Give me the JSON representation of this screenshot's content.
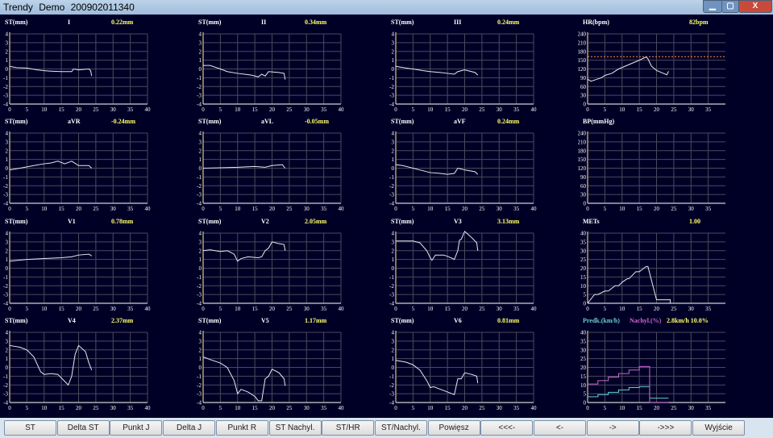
{
  "window": {
    "title": "Trendy  Demo  200902011340",
    "minimize": "▁",
    "maximize": "▢",
    "close": "X"
  },
  "colors": {
    "background": "#000027",
    "grid": "#4a4a5a",
    "trace": "#e8e8f0",
    "value": "#ffff66",
    "threshold": "#ff8c3a",
    "speed": "#66cccc",
    "incline": "#cc66cc"
  },
  "panels": [
    {
      "label": "ST(mm)",
      "lead": "I",
      "value": "0.22mm",
      "ylim": [
        -4,
        4
      ],
      "ystep": 1,
      "xticks": [
        0,
        5,
        10,
        15,
        20,
        25,
        30,
        35,
        40
      ],
      "series": [
        [
          [
            0,
            0.3
          ],
          [
            2,
            0.15
          ],
          [
            5,
            0.1
          ],
          [
            8,
            -0.1
          ],
          [
            10,
            -0.2
          ],
          [
            12,
            -0.25
          ],
          [
            15,
            -0.3
          ],
          [
            18,
            -0.3
          ],
          [
            18.5,
            0
          ],
          [
            20,
            -0.1
          ],
          [
            23,
            0
          ],
          [
            23.5,
            -0.2
          ],
          [
            23.8,
            -0.8
          ]
        ]
      ]
    },
    {
      "label": "ST(mm)",
      "lead": "II",
      "value": "0.34mm",
      "ylim": [
        -4,
        4
      ],
      "ystep": 1,
      "xticks": [
        0,
        5,
        10,
        15,
        20,
        25,
        30,
        35,
        40
      ],
      "series": [
        [
          [
            0,
            0.4
          ],
          [
            2,
            0.4
          ],
          [
            5,
            0
          ],
          [
            7,
            -0.3
          ],
          [
            10,
            -0.5
          ],
          [
            12,
            -0.6
          ],
          [
            14,
            -0.7
          ],
          [
            16,
            -0.9
          ],
          [
            17,
            -0.6
          ],
          [
            18,
            -0.8
          ],
          [
            19,
            -0.3
          ],
          [
            22,
            -0.4
          ],
          [
            23.5,
            -0.5
          ],
          [
            23.8,
            -1.2
          ]
        ]
      ]
    },
    {
      "label": "ST(mm)",
      "lead": "III",
      "value": "0.24mm",
      "ylim": [
        -4,
        4
      ],
      "ystep": 1,
      "xticks": [
        0,
        5,
        10,
        15,
        20,
        25,
        30,
        35,
        40
      ],
      "series": [
        [
          [
            0,
            0.3
          ],
          [
            3,
            0.1
          ],
          [
            5,
            0
          ],
          [
            8,
            -0.2
          ],
          [
            10,
            -0.3
          ],
          [
            13,
            -0.4
          ],
          [
            15,
            -0.5
          ],
          [
            17,
            -0.6
          ],
          [
            18,
            -0.3
          ],
          [
            20,
            -0.1
          ],
          [
            22,
            -0.3
          ],
          [
            23,
            -0.4
          ],
          [
            23.8,
            -0.7
          ]
        ]
      ]
    },
    {
      "label": "HR(bpm)",
      "lead": "",
      "value": "82bpm",
      "ylim": [
        0,
        240
      ],
      "ystep": 30,
      "xticks": [
        0,
        5,
        10,
        15,
        20,
        25,
        30,
        35
      ],
      "threshold": 162,
      "series": [
        [
          [
            0,
            85
          ],
          [
            1,
            78
          ],
          [
            3,
            86
          ],
          [
            4,
            90
          ],
          [
            5,
            98
          ],
          [
            7,
            105
          ],
          [
            9,
            120
          ],
          [
            11,
            130
          ],
          [
            13,
            140
          ],
          [
            15,
            150
          ],
          [
            17,
            161
          ],
          [
            17.5,
            155
          ],
          [
            18.5,
            130
          ],
          [
            20,
            115
          ],
          [
            22,
            105
          ],
          [
            23,
            100
          ],
          [
            23.5,
            112
          ]
        ]
      ]
    },
    {
      "label": "ST(mm)",
      "lead": "aVR",
      "value": "-0.24mm",
      "ylim": [
        -4,
        4
      ],
      "ystep": 1,
      "xticks": [
        0,
        5,
        10,
        15,
        20,
        25,
        30,
        35,
        40
      ],
      "series": [
        [
          [
            0,
            -0.2
          ],
          [
            3,
            0
          ],
          [
            7,
            0.3
          ],
          [
            10,
            0.5
          ],
          [
            12,
            0.6
          ],
          [
            14,
            0.8
          ],
          [
            16,
            0.5
          ],
          [
            18,
            0.8
          ],
          [
            20,
            0.3
          ],
          [
            23,
            0.3
          ],
          [
            23.8,
            0
          ]
        ]
      ]
    },
    {
      "label": "ST(mm)",
      "lead": "aVL",
      "value": "-0.05mm",
      "ylim": [
        -4,
        4
      ],
      "ystep": 1,
      "xticks": [
        0,
        5,
        10,
        15,
        20,
        25,
        30,
        35,
        40
      ],
      "series": [
        [
          [
            0,
            0
          ],
          [
            5,
            0.05
          ],
          [
            10,
            0.1
          ],
          [
            15,
            0.2
          ],
          [
            18,
            0.1
          ],
          [
            20,
            0.3
          ],
          [
            23,
            0.4
          ],
          [
            23.8,
            0
          ]
        ]
      ]
    },
    {
      "label": "ST(mm)",
      "lead": "aVF",
      "value": "0.24mm",
      "ylim": [
        -4,
        4
      ],
      "ystep": 1,
      "xticks": [
        0,
        5,
        10,
        15,
        20,
        25,
        30,
        35,
        40
      ],
      "series": [
        [
          [
            0,
            0.4
          ],
          [
            2,
            0.3
          ],
          [
            5,
            0
          ],
          [
            7,
            -0.2
          ],
          [
            10,
            -0.5
          ],
          [
            13,
            -0.6
          ],
          [
            15,
            -0.7
          ],
          [
            17,
            -0.6
          ],
          [
            18,
            0
          ],
          [
            20,
            -0.2
          ],
          [
            23,
            -0.4
          ],
          [
            23.8,
            -0.7
          ]
        ]
      ]
    },
    {
      "label": "BP(mmHg)",
      "lead": "",
      "value": "",
      "ylim": [
        0,
        240
      ],
      "ystep": 30,
      "xticks": [
        0,
        5,
        10,
        15,
        20,
        25,
        30,
        35
      ],
      "series": []
    },
    {
      "label": "ST(mm)",
      "lead": "V1",
      "value": "0.78mm",
      "ylim": [
        -4,
        4
      ],
      "ystep": 1,
      "xticks": [
        0,
        5,
        10,
        15,
        20,
        25,
        30,
        35,
        40
      ],
      "series": [
        [
          [
            0,
            0.8
          ],
          [
            5,
            1
          ],
          [
            10,
            1.1
          ],
          [
            15,
            1.2
          ],
          [
            18,
            1.3
          ],
          [
            20,
            1.5
          ],
          [
            23,
            1.6
          ],
          [
            23.8,
            1.4
          ]
        ]
      ]
    },
    {
      "label": "ST(mm)",
      "lead": "V2",
      "value": "2.05mm",
      "ylim": [
        -4,
        4
      ],
      "ystep": 1,
      "xticks": [
        0,
        5,
        10,
        15,
        20,
        25,
        30,
        35,
        40
      ],
      "series": [
        [
          [
            0,
            2
          ],
          [
            2,
            2.1
          ],
          [
            5,
            1.9
          ],
          [
            7,
            2
          ],
          [
            9,
            1.6
          ],
          [
            10,
            0.8
          ],
          [
            11,
            1.1
          ],
          [
            13,
            1.3
          ],
          [
            16,
            1.2
          ],
          [
            17,
            1.3
          ],
          [
            18,
            2
          ],
          [
            19,
            2.3
          ],
          [
            20,
            3
          ],
          [
            22,
            2.8
          ],
          [
            23.5,
            2.7
          ],
          [
            23.8,
            2
          ]
        ]
      ]
    },
    {
      "label": "ST(mm)",
      "lead": "V3",
      "value": "3.13mm",
      "ylim": [
        -4,
        4
      ],
      "ystep": 1,
      "xticks": [
        0,
        5,
        10,
        15,
        20,
        25,
        30,
        35,
        40
      ],
      "series": [
        [
          [
            0,
            3.1
          ],
          [
            3,
            3.1
          ],
          [
            5,
            3.1
          ],
          [
            7,
            2.9
          ],
          [
            9,
            2
          ],
          [
            10,
            1.2
          ],
          [
            10.5,
            0.9
          ],
          [
            11.5,
            1.5
          ],
          [
            14,
            1.5
          ],
          [
            16,
            1.2
          ],
          [
            17,
            1
          ],
          [
            18,
            2
          ],
          [
            18.5,
            3.2
          ],
          [
            19,
            3.3
          ],
          [
            20,
            4.2
          ],
          [
            22,
            3.5
          ],
          [
            23.5,
            2.9
          ],
          [
            23.8,
            2
          ]
        ]
      ]
    },
    {
      "label": "METs",
      "lead": "",
      "value": "1.00",
      "ylim": [
        0,
        40
      ],
      "ystep": 5,
      "xticks": [
        0,
        5,
        10,
        15,
        20,
        25,
        30,
        35
      ],
      "series": [
        [
          [
            0,
            0
          ],
          [
            2,
            5
          ],
          [
            3,
            5
          ],
          [
            5,
            7
          ],
          [
            6,
            7
          ],
          [
            8,
            10
          ],
          [
            9,
            10
          ],
          [
            10,
            12
          ],
          [
            11.5,
            14
          ],
          [
            12,
            14
          ],
          [
            14,
            18
          ],
          [
            15,
            18
          ],
          [
            17,
            21
          ],
          [
            17.5,
            21
          ],
          [
            20,
            2
          ],
          [
            24,
            2
          ],
          [
            24,
            0
          ]
        ]
      ]
    },
    {
      "label": "ST(mm)",
      "lead": "V4",
      "value": "2.37mm",
      "ylim": [
        -4,
        4
      ],
      "ystep": 1,
      "xticks": [
        0,
        5,
        10,
        15,
        20,
        25,
        30,
        35,
        40
      ],
      "series": [
        [
          [
            0,
            2.5
          ],
          [
            3,
            2.3
          ],
          [
            5,
            2
          ],
          [
            7,
            1.2
          ],
          [
            9,
            -0.5
          ],
          [
            10,
            -0.8
          ],
          [
            12,
            -0.7
          ],
          [
            14,
            -0.8
          ],
          [
            16,
            -1.6
          ],
          [
            17,
            -2
          ],
          [
            18,
            -1
          ],
          [
            19,
            1.5
          ],
          [
            20,
            2.5
          ],
          [
            22,
            1.8
          ],
          [
            23,
            0.5
          ],
          [
            23.8,
            -0.3
          ]
        ]
      ]
    },
    {
      "label": "ST(mm)",
      "lead": "V5",
      "value": "1.17mm",
      "ylim": [
        -4,
        4
      ],
      "ystep": 1,
      "xticks": [
        0,
        5,
        10,
        15,
        20,
        25,
        30,
        35,
        40
      ],
      "series": [
        [
          [
            0,
            1.2
          ],
          [
            2,
            0.9
          ],
          [
            5,
            0.5
          ],
          [
            7,
            0
          ],
          [
            9,
            -1.5
          ],
          [
            10,
            -3
          ],
          [
            11,
            -2.5
          ],
          [
            13,
            -2.8
          ],
          [
            15,
            -3.3
          ],
          [
            16,
            -3.8
          ],
          [
            17,
            -3.8
          ],
          [
            18,
            -1.3
          ],
          [
            19,
            -1
          ],
          [
            20,
            -0.2
          ],
          [
            22,
            -0.6
          ],
          [
            23.5,
            -1.3
          ],
          [
            23.8,
            -2.1
          ]
        ]
      ]
    },
    {
      "label": "ST(mm)",
      "lead": "V6",
      "value": "0.81mm",
      "ylim": [
        -4,
        4
      ],
      "ystep": 1,
      "xticks": [
        0,
        5,
        10,
        15,
        20,
        25,
        30,
        35,
        40
      ],
      "series": [
        [
          [
            0,
            0.8
          ],
          [
            3,
            0.6
          ],
          [
            5,
            0.3
          ],
          [
            7,
            -0.3
          ],
          [
            9,
            -1.5
          ],
          [
            10,
            -2.3
          ],
          [
            11,
            -2.2
          ],
          [
            13,
            -2.5
          ],
          [
            15,
            -2.8
          ],
          [
            17,
            -3.1
          ],
          [
            18,
            -1.3
          ],
          [
            19,
            -1.3
          ],
          [
            20,
            -0.6
          ],
          [
            22,
            -0.8
          ],
          [
            23.5,
            -1
          ],
          [
            23.8,
            -1.8
          ]
        ]
      ]
    },
    {
      "label": "Predk.(km/h)",
      "label2": "Nachyl.(%)",
      "lead": "",
      "value": "2.8km/h 10.0%",
      "ylim": [
        0,
        40
      ],
      "ystep": 5,
      "xticks": [
        0,
        5,
        10,
        15,
        20,
        25,
        30,
        35
      ],
      "series": [
        [
          [
            0,
            3.3
          ],
          [
            3,
            3.3
          ],
          [
            3,
            4.5
          ],
          [
            6,
            4.5
          ],
          [
            6,
            5.8
          ],
          [
            9,
            5.8
          ],
          [
            9,
            7.2
          ],
          [
            12,
            7.2
          ],
          [
            12,
            8.5
          ],
          [
            15,
            8.5
          ],
          [
            15,
            9
          ],
          [
            18,
            9
          ],
          [
            18,
            2.5
          ],
          [
            23.5,
            2.5
          ]
        ],
        [
          [
            0,
            10.5
          ],
          [
            3,
            10.5
          ],
          [
            3,
            12.5
          ],
          [
            6,
            12.5
          ],
          [
            6,
            14.5
          ],
          [
            9,
            14.5
          ],
          [
            9,
            16.5
          ],
          [
            12,
            16.5
          ],
          [
            12,
            18.5
          ],
          [
            15,
            18.5
          ],
          [
            15,
            20.5
          ],
          [
            18,
            20.5
          ],
          [
            18,
            0
          ],
          [
            23.5,
            0
          ]
        ]
      ]
    }
  ],
  "buttons": [
    "ST",
    "Delta ST",
    "Punkt J",
    "Delta J",
    "Punkt R",
    "ST Nachyl.",
    "ST/HR",
    "ST/Nachyl.",
    "Powięsz",
    "<<<-",
    "<-",
    "->",
    "->>>",
    "Wyjście"
  ]
}
